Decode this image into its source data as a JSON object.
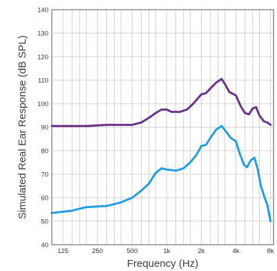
{
  "chart_data": {
    "type": "line",
    "title": "",
    "xlabel": "Frequency (Hz)",
    "ylabel": "Simulated Real Ear Response (dB SPL)",
    "x_scale": "log",
    "xlim": [
      100,
      8500
    ],
    "ylim": [
      40,
      140
    ],
    "x_ticks": [
      {
        "value": 125,
        "label": "125"
      },
      {
        "value": 250,
        "label": "250"
      },
      {
        "value": 500,
        "label": "500"
      },
      {
        "value": 1000,
        "label": "1k"
      },
      {
        "value": 2000,
        "label": "2k"
      },
      {
        "value": 4000,
        "label": "4k"
      },
      {
        "value": 8000,
        "label": "8k"
      }
    ],
    "x_minor_gridlines": [
      100,
      125,
      150,
      175,
      200,
      250,
      300,
      350,
      400,
      500,
      600,
      700,
      800,
      1000,
      1200,
      1400,
      1600,
      2000,
      2400,
      2800,
      3200,
      4000,
      4800,
      5600,
      6400,
      8000
    ],
    "y_ticks": [
      40,
      50,
      60,
      70,
      80,
      90,
      100,
      110,
      120,
      130,
      140
    ],
    "grid": true,
    "legend": "none",
    "series": [
      {
        "color": "#6a2f86",
        "x": [
          100,
          200,
          300,
          500,
          600,
          700,
          800,
          900,
          1000,
          1100,
          1300,
          1500,
          1700,
          2000,
          2200,
          2400,
          2700,
          3000,
          3200,
          3500,
          4000,
          4400,
          4800,
          5200,
          5600,
          6000,
          6400,
          7000,
          7500,
          8000
        ],
        "y": [
          90.5,
          90.5,
          91,
          91,
          92,
          94,
          96,
          97.5,
          97.5,
          96.5,
          96.5,
          97.5,
          100,
          104,
          104.5,
          106.5,
          109,
          110.5,
          108.5,
          105,
          103.5,
          99,
          96,
          95.5,
          98,
          98.5,
          95,
          92.5,
          92,
          91
        ]
      },
      {
        "color": "#1f9be6",
        "x": [
          100,
          150,
          200,
          300,
          400,
          500,
          600,
          700,
          800,
          900,
          1000,
          1200,
          1400,
          1600,
          1800,
          2000,
          2200,
          2400,
          2700,
          3000,
          3300,
          3600,
          4000,
          4300,
          4700,
          5000,
          5400,
          5800,
          6200,
          6600,
          7000,
          7500,
          8000
        ],
        "y": [
          53.5,
          54.5,
          56,
          56.5,
          58,
          60,
          63,
          66,
          70.5,
          72.5,
          72,
          71.5,
          72.5,
          75,
          78,
          82,
          82.5,
          85.5,
          89,
          90.5,
          88,
          85.5,
          84,
          79,
          74,
          73,
          76,
          77,
          72,
          65,
          61,
          57,
          50
        ]
      }
    ]
  }
}
